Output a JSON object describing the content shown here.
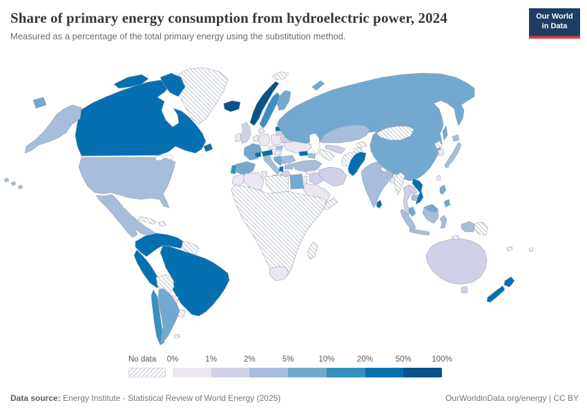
{
  "header": {
    "title": "Share of primary energy consumption from hydroelectric power, 2024",
    "subtitle": "Measured as a percentage of the total primary energy using the substitution method.",
    "logo": {
      "line1": "Our World",
      "line2": "in Data",
      "bg_color": "#1d3d63",
      "accent_color": "#d7383f"
    }
  },
  "legend": {
    "no_data_label": "No data",
    "tick_labels": [
      "0%",
      "1%",
      "2%",
      "5%",
      "10%",
      "20%",
      "50%",
      "100%"
    ]
  },
  "footer": {
    "source_label": "Data source:",
    "source_text": " Energy Institute - Statistical Review of World Energy (2025)",
    "credit_text": "OurWorldinData.org/energy | CC BY"
  },
  "chart_data": {
    "type": "choropleth",
    "title": "Share of primary energy consumption from hydroelectric power, 2024",
    "unit": "%",
    "legend_position": "bottom",
    "bins": [
      "0-1%",
      "1-2%",
      "2-5%",
      "5-10%",
      "10-20%",
      "20-50%",
      "50-100%"
    ],
    "bucket_colors": {
      "0-1%": "#ece7f2",
      "1-2%": "#d0d1e6",
      "2-5%": "#a6bddb",
      "5-10%": "#74a9cf",
      "10-20%": "#3690c0",
      "20-50%": "#0570b0",
      "50-100%": "#07538a"
    },
    "no_data_value": "no-data",
    "countries": {
      "canada": "20-50%",
      "usa": "2-5%",
      "greenland": "no-data",
      "mexico": "2-5%",
      "central-america": "2-5%",
      "costa-rica-panama": "20-50%",
      "cuba": "no-data",
      "hispaniola": "no-data",
      "colombia-venezuela": "20-50%",
      "guyanas": "no-data",
      "peru": "20-50%",
      "brazil": "20-50%",
      "bolivia": "no-data",
      "paraguay": "no-data",
      "uruguay": "no-data",
      "argentina": "5-10%",
      "chile": "10-20%",
      "falkland-islands": "no-data",
      "iceland": "50-100%",
      "norway": "50-100%",
      "sweden": "10-20%",
      "finland": "5-10%",
      "denmark": "0-1%",
      "uk": "1-2%",
      "ireland": "0-1%",
      "benelux": "0-1%",
      "france": "5-10%",
      "spain": "5-10%",
      "portugal": "10-20%",
      "germany": "0-1%",
      "poland": "0-1%",
      "czechia": "0-1%",
      "slovakia": "2-5%",
      "hungary": "0-1%",
      "switzerland": "20-50%",
      "austria": "20-50%",
      "italy": "2-5%",
      "balkans-west": "5-10%",
      "serbia": "2-5%",
      "albania": "20-50%",
      "greece": "1-2%",
      "bulgaria": "2-5%",
      "romania": "2-5%",
      "ukraine": "0-1%",
      "belarus": "1-2%",
      "lithuania": "1-2%",
      "latvia": "20-50%",
      "estonia": "0-1%",
      "svalbard": "no-data",
      "russia": "5-10%",
      "kazakhstan": "2-5%",
      "uzbekistan": "1-2%",
      "turkmenistan": "no-data",
      "kyrgyzstan": "no-data",
      "tajikistan": "no-data",
      "georgia": "20-50%",
      "azerbaijan": "2-5%",
      "turkey": "2-5%",
      "syria": "0-1%",
      "iraq": "1-2%",
      "iran": "1-2%",
      "israel-jordan": "0-1%",
      "saudi-arabia": "0-1%",
      "yemen-oman": "no-data",
      "egypt": "5-10%",
      "morocco": "0-1%",
      "algeria": "0-1%",
      "tunisia": "0-1%",
      "libya": "no-data",
      "africa-other": "no-data",
      "south-africa": "0-1%",
      "madagascar": "no-data",
      "afghanistan": "no-data",
      "pakistan": "20-50%",
      "india": "2-5%",
      "nepal": "no-data",
      "bhutan": "20-50%",
      "bangladesh": "0-1%",
      "sri-lanka": "20-50%",
      "china": "5-10%",
      "mongolia": "no-data",
      "north-korea": "no-data",
      "south-korea": "0-1%",
      "japan": "2-5%",
      "taiwan": "0-1%",
      "myanmar": "no-data",
      "thailand": "1-2%",
      "laos": "1-2%",
      "vietnam": "20-50%",
      "cambodia": "2-5%",
      "malaysia": "5-10%",
      "indonesia": "2-5%",
      "timor": "no-data",
      "papua-new-guinea": "no-data",
      "philippines": "5-10%",
      "australia": "1-2%",
      "new-zealand": "20-50%",
      "new-caledonia": "no-data",
      "fiji": "no-data"
    }
  }
}
